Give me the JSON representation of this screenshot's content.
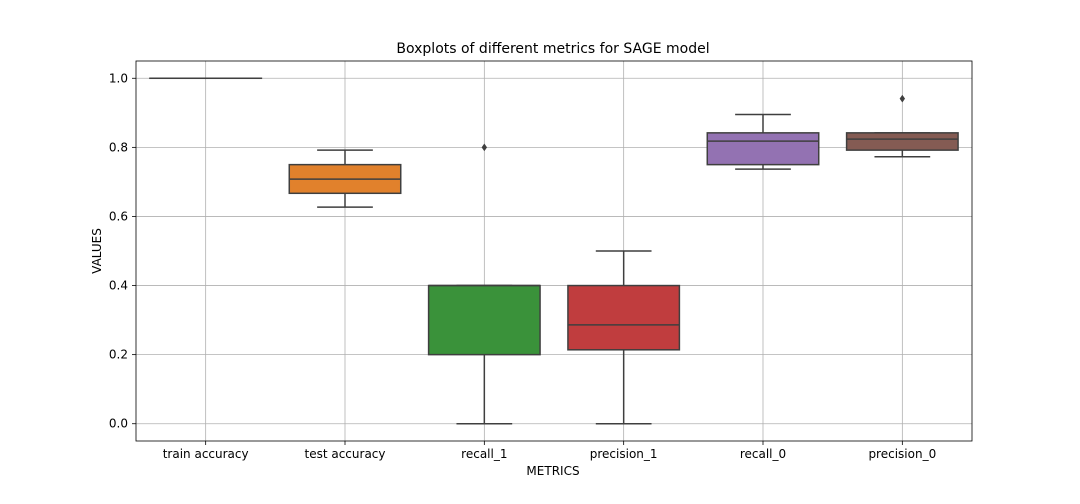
{
  "chart_data": {
    "type": "boxplot",
    "title": "Boxplots of different metrics for SAGE model",
    "xlabel": "METRICS",
    "ylabel": "VALUES",
    "ylim": [
      -0.05,
      1.05
    ],
    "yticks": [
      0.0,
      0.2,
      0.4,
      0.6,
      0.8,
      1.0
    ],
    "ytick_labels": [
      "0.0",
      "0.2",
      "0.4",
      "0.6",
      "0.8",
      "1.0"
    ],
    "grid": true,
    "categories": [
      "train accuracy",
      "test accuracy",
      "recall_1",
      "precision_1",
      "recall_0",
      "precision_0"
    ],
    "boxes": [
      {
        "name": "train accuracy",
        "color": "#3274a1",
        "whislo": 1.0,
        "q1": 1.0,
        "med": 1.0,
        "q3": 1.0,
        "whishi": 1.0,
        "fliers": []
      },
      {
        "name": "test accuracy",
        "color": "#e1812c",
        "whislo": 0.627,
        "q1": 0.667,
        "med": 0.708,
        "q3": 0.75,
        "whishi": 0.792,
        "fliers": []
      },
      {
        "name": "recall_1",
        "color": "#3a923a",
        "whislo": 0.0,
        "q1": 0.2,
        "med": 0.4,
        "q3": 0.4,
        "whishi": 0.4,
        "fliers": [
          0.8
        ]
      },
      {
        "name": "precision_1",
        "color": "#c03d3e",
        "whislo": 0.0,
        "q1": 0.214,
        "med": 0.286,
        "q3": 0.4,
        "whishi": 0.5,
        "fliers": []
      },
      {
        "name": "recall_0",
        "color": "#9372b2",
        "whislo": 0.737,
        "q1": 0.75,
        "med": 0.818,
        "q3": 0.842,
        "whishi": 0.895,
        "fliers": []
      },
      {
        "name": "precision_0",
        "color": "#845b53",
        "whislo": 0.773,
        "q1": 0.792,
        "med": 0.824,
        "q3": 0.842,
        "whishi": 0.842,
        "fliers": [
          0.941
        ]
      }
    ]
  }
}
